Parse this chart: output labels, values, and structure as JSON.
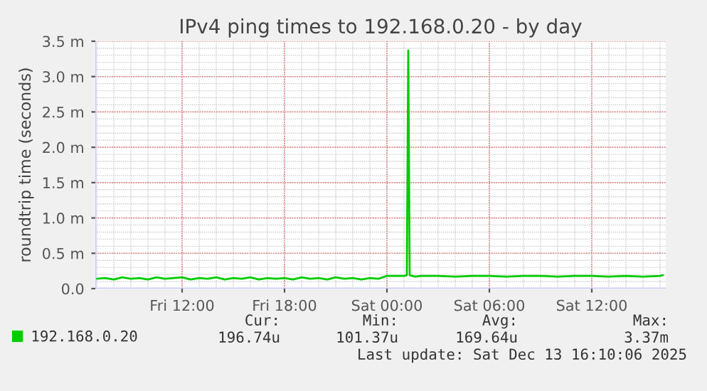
{
  "chart_data": {
    "type": "line",
    "title": "IPv4 ping times to 192.168.0.20 - by day",
    "ylabel": "roundtrip time (seconds)",
    "xlim": [
      "2025-12-12T06:55",
      "2025-12-13T16:20"
    ],
    "xticks": [
      {
        "value": "2025-12-12T12:00",
        "label": "Fri 12:00"
      },
      {
        "value": "2025-12-12T18:00",
        "label": "Fri 18:00"
      },
      {
        "value": "2025-12-13T00:00",
        "label": "Sat 00:00"
      },
      {
        "value": "2025-12-13T06:00",
        "label": "Sat 06:00"
      },
      {
        "value": "2025-12-13T12:00",
        "label": "Sat 12:00"
      }
    ],
    "ylim": [
      0,
      3.5
    ],
    "yticks": [
      {
        "value": 0,
        "label": "0.0"
      },
      {
        "value": 0.5,
        "label": "0.5 m"
      },
      {
        "value": 1.0,
        "label": "1.0 m"
      },
      {
        "value": 1.5,
        "label": "1.5 m"
      },
      {
        "value": 2.0,
        "label": "2.0 m"
      },
      {
        "value": 2.5,
        "label": "2.5 m"
      },
      {
        "value": 3.0,
        "label": "3.0 m"
      },
      {
        "value": 3.5,
        "label": "3.5 m"
      }
    ],
    "grid": true,
    "legend": "bottom",
    "marker": "none",
    "line_style": "solid",
    "series": [
      {
        "name": "192.168.0.20",
        "color": "#00cc00",
        "x": [
          "2025-12-12T07:00",
          "2025-12-12T07:30",
          "2025-12-12T08:00",
          "2025-12-12T08:30",
          "2025-12-12T09:00",
          "2025-12-12T09:30",
          "2025-12-12T10:00",
          "2025-12-12T10:30",
          "2025-12-12T11:00",
          "2025-12-12T11:30",
          "2025-12-12T12:00",
          "2025-12-12T12:30",
          "2025-12-12T13:00",
          "2025-12-12T13:30",
          "2025-12-12T14:00",
          "2025-12-12T14:30",
          "2025-12-12T15:00",
          "2025-12-12T15:30",
          "2025-12-12T16:00",
          "2025-12-12T16:30",
          "2025-12-12T17:00",
          "2025-12-12T17:30",
          "2025-12-12T18:00",
          "2025-12-12T18:30",
          "2025-12-12T19:00",
          "2025-12-12T19:30",
          "2025-12-12T20:00",
          "2025-12-12T20:30",
          "2025-12-12T21:00",
          "2025-12-12T21:30",
          "2025-12-12T22:00",
          "2025-12-12T22:30",
          "2025-12-12T23:00",
          "2025-12-12T23:30",
          "2025-12-13T00:00",
          "2025-12-13T00:30",
          "2025-12-13T01:00",
          "2025-12-13T01:10",
          "2025-12-13T01:15",
          "2025-12-13T01:20",
          "2025-12-13T01:40",
          "2025-12-13T02:00",
          "2025-12-13T03:00",
          "2025-12-13T04:00",
          "2025-12-13T05:00",
          "2025-12-13T06:00",
          "2025-12-13T07:00",
          "2025-12-13T08:00",
          "2025-12-13T09:00",
          "2025-12-13T10:00",
          "2025-12-13T11:00",
          "2025-12-13T12:00",
          "2025-12-13T13:00",
          "2025-12-13T14:00",
          "2025-12-13T15:00",
          "2025-12-13T16:00",
          "2025-12-13T16:10"
        ],
        "values": [
          0.14,
          0.15,
          0.13,
          0.16,
          0.14,
          0.15,
          0.13,
          0.16,
          0.14,
          0.15,
          0.16,
          0.13,
          0.15,
          0.14,
          0.16,
          0.13,
          0.15,
          0.14,
          0.16,
          0.13,
          0.15,
          0.14,
          0.15,
          0.13,
          0.16,
          0.14,
          0.15,
          0.13,
          0.16,
          0.14,
          0.15,
          0.13,
          0.15,
          0.14,
          0.18,
          0.18,
          0.18,
          0.19,
          3.37,
          0.19,
          0.17,
          0.18,
          0.18,
          0.17,
          0.18,
          0.18,
          0.17,
          0.18,
          0.18,
          0.17,
          0.18,
          0.18,
          0.17,
          0.18,
          0.17,
          0.18,
          0.19
        ]
      }
    ],
    "annotations": [
      "Cur:",
      "196.74u",
      "Min:",
      "101.37u",
      "Avg:",
      "169.64u",
      "Max:",
      "3.37m",
      "Last update: Sat Dec 13 16:10:06 2025"
    ]
  }
}
